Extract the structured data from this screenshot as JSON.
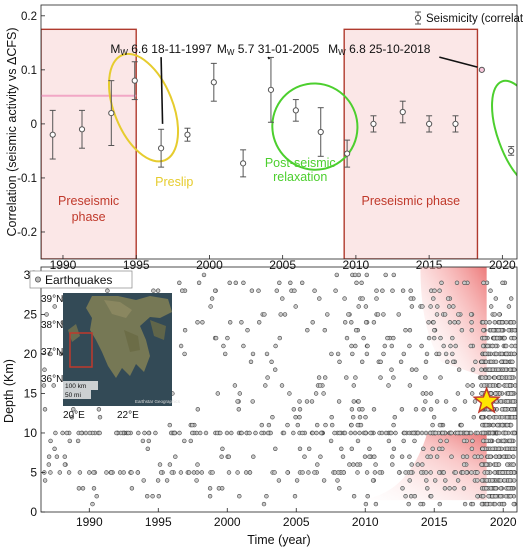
{
  "chart_data": [
    {
      "type": "scatter",
      "panel": "top",
      "ylabel": "Correlation (seismic activity vs ΔCFS)",
      "xlim": [
        1988.5,
        2021
      ],
      "ylim": [
        -0.25,
        0.22
      ],
      "xticks": [
        1990,
        1995,
        2000,
        2005,
        2010,
        2015,
        2020
      ],
      "yticks": [
        -0.2,
        -0.1,
        0,
        0.1,
        0.2
      ],
      "ytick_labels": [
        "-0.2",
        "-0.1",
        "0",
        "0.1",
        "0.2"
      ],
      "grid": false,
      "legend": "top-right",
      "series": [
        {
          "name": "Seismicity (correlation ± σ)",
          "points": [
            {
              "x": 1989.3,
              "y": -0.02,
              "err": 0.045
            },
            {
              "x": 1991.3,
              "y": -0.01,
              "err": 0.035
            },
            {
              "x": 1993.3,
              "y": 0.02,
              "err": 0.06
            },
            {
              "x": 1994.9,
              "y": 0.08,
              "err": 0.035
            },
            {
              "x": 1996.7,
              "y": -0.045,
              "err": 0.035
            },
            {
              "x": 1998.5,
              "y": -0.02,
              "err": 0.012
            },
            {
              "x": 2000.3,
              "y": 0.077,
              "err": 0.035
            },
            {
              "x": 2002.3,
              "y": -0.073,
              "err": 0.025
            },
            {
              "x": 2004.2,
              "y": 0.063,
              "err": 0.06
            },
            {
              "x": 2005.9,
              "y": 0.025,
              "err": 0.02
            },
            {
              "x": 2007.6,
              "y": -0.015,
              "err": 0.045
            },
            {
              "x": 2009.4,
              "y": -0.055,
              "err": 0.025
            },
            {
              "x": 2011.2,
              "y": 0.0,
              "err": 0.015
            },
            {
              "x": 2013.2,
              "y": 0.022,
              "err": 0.02
            },
            {
              "x": 2015.0,
              "y": 0.0,
              "err": 0.015
            },
            {
              "x": 2016.8,
              "y": 0.0,
              "err": 0.015
            },
            {
              "x": 2018.6,
              "y": 0.1,
              "err": 0.0
            },
            {
              "x": 2020.6,
              "y": -0.05,
              "err": 0.008
            }
          ]
        }
      ],
      "shaded_phases": [
        {
          "label": "Preseismic phase",
          "x0": 1988.5,
          "x1": 1995,
          "y0": -0.25,
          "y1": 0.175
        },
        {
          "label": "Preseismic phase",
          "x0": 2009.2,
          "x1": 2018.3,
          "y0": -0.25,
          "y1": 0.175
        }
      ],
      "ellipses": [
        {
          "label": "Preslip",
          "color": "#e6cc2e",
          "cx": 1995.5,
          "cy": 0.03,
          "rx": 2.0,
          "ry": 0.105,
          "angle": -22
        },
        {
          "label": "Post-seismic\nrelaxation",
          "color": "#4ccf2e",
          "cx": 2007.2,
          "cy": -0.005,
          "rx": 2.9,
          "ry": 0.08,
          "angle": -20
        },
        {
          "label": "",
          "color": "#4ccf2e",
          "cx": 2021.3,
          "cy": -0.02,
          "rx": 1.6,
          "ry": 0.105,
          "angle": -20
        }
      ],
      "annotations": [
        {
          "text": "MW 6.6 18-11-1997",
          "x": 1996.7,
          "y": 0.205,
          "arrow_to": [
            1996.8,
            0.0
          ]
        },
        {
          "text": "MW 5.7 31-01-2005",
          "x": 2004.0,
          "y": 0.205,
          "arrow_to": [
            2004.1,
            0.12
          ]
        },
        {
          "text": "MW 6.8 25-10-2018",
          "x": 2011.6,
          "y": 0.205,
          "arrow_to": [
            2018.3,
            0.105
          ]
        }
      ]
    },
    {
      "type": "scatter",
      "panel": "bottom",
      "xlabel": "Time (year)",
      "ylabel": "Depth (Km)",
      "xlim": [
        1986.5,
        2021
      ],
      "ylim": [
        0,
        31
      ],
      "xticks": [
        1990,
        1995,
        2000,
        2005,
        2010,
        2015,
        2020
      ],
      "yticks": [
        0,
        5,
        10,
        15,
        20,
        25,
        30
      ],
      "grid": false,
      "legend": "top-left",
      "series": [
        {
          "name": "Earthquakes",
          "note": "depth values quantised to 1 km, density increasing strongly after ~2008, dense band near 10 km"
        }
      ],
      "mainshock": {
        "x": 2018.8,
        "y": 14,
        "label": "star"
      },
      "gradient_zones": [
        {
          "x0": 2014,
          "x1": 2018.8,
          "y0": 17,
          "y1": 31
        },
        {
          "x0": 2009,
          "x1": 2018.8,
          "y0": 1.5,
          "y1": 10
        }
      ]
    }
  ],
  "inset_map": {
    "lat_labels": [
      "39°N",
      "38°N",
      "37°N",
      "36°N"
    ],
    "lon_labels": [
      "20°E",
      "22°E"
    ],
    "scale_labels": [
      "100 km",
      "50 mi"
    ],
    "credit": "Earthstar Geographics"
  }
}
